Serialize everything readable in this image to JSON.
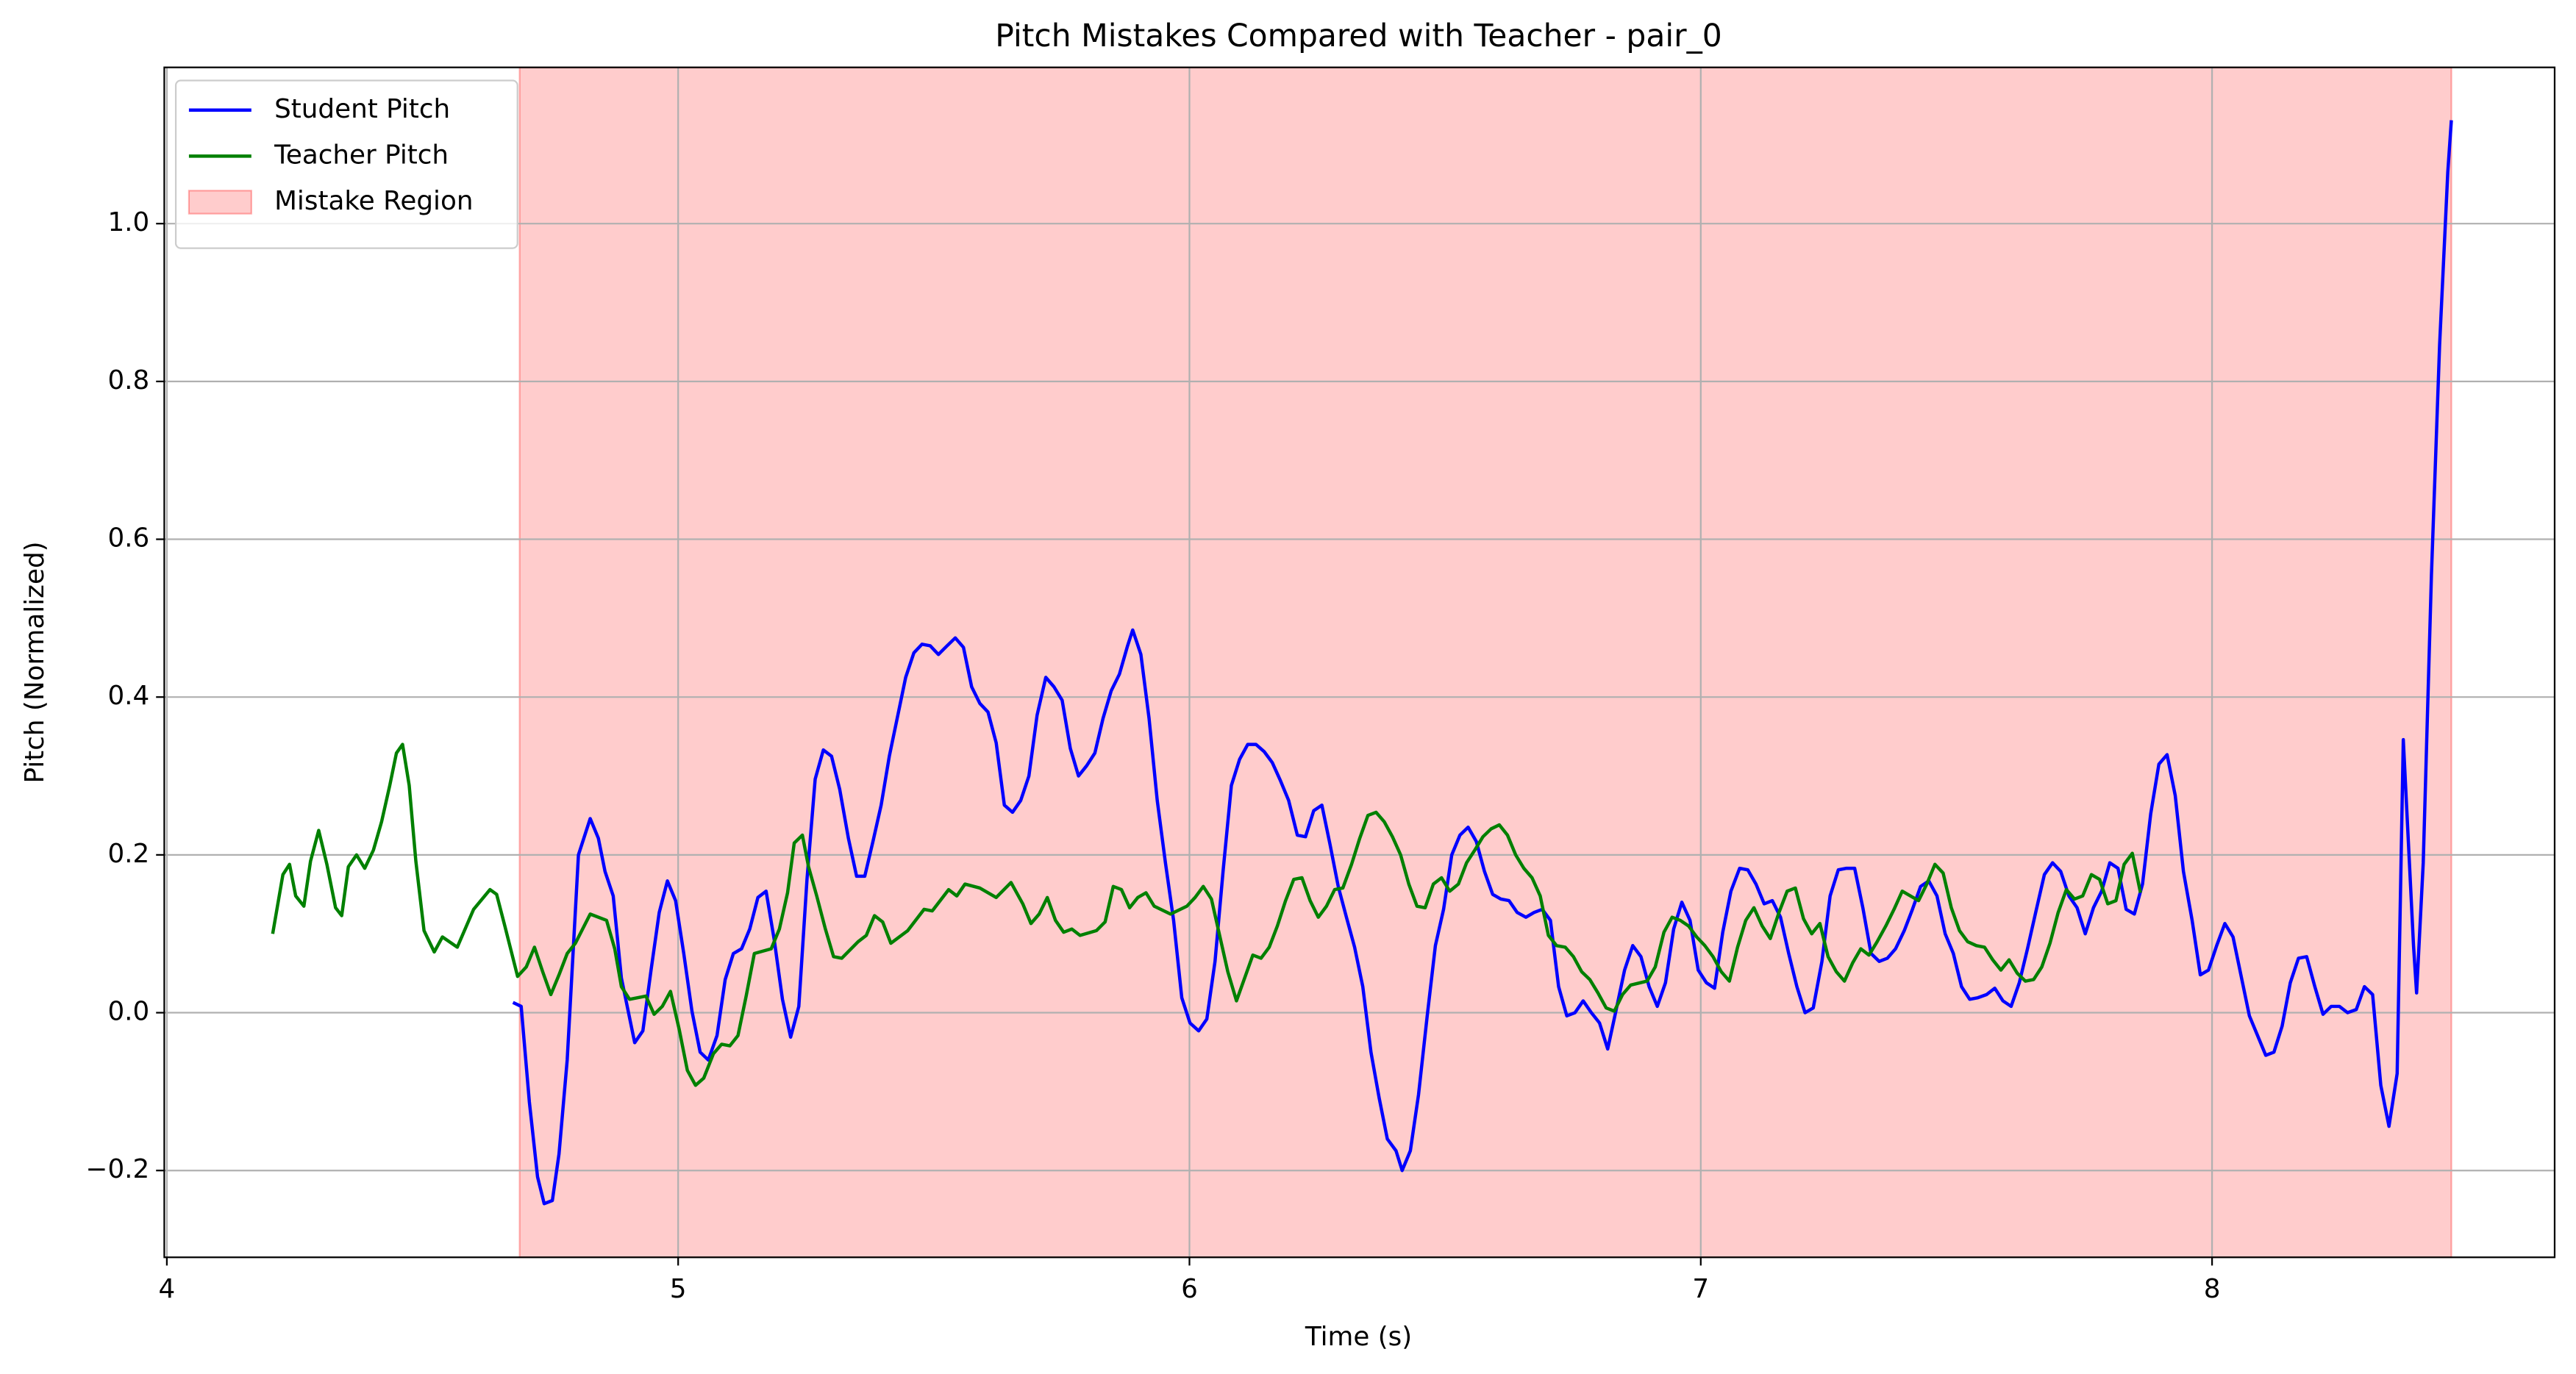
{
  "chart_data": {
    "type": "line",
    "title": "Pitch Mistakes Compared with Teacher - pair_0",
    "x_label": "Time (s)",
    "y_label": "Pitch (Normalized)",
    "xlim": [
      3.995,
      8.67
    ],
    "ylim": [
      -0.31,
      1.198
    ],
    "xticks": [
      4,
      5,
      6,
      7,
      8
    ],
    "yticks": [
      -0.2,
      0.0,
      0.2,
      0.4,
      0.6,
      0.8,
      1.0
    ],
    "grid": true,
    "legend": "upper left",
    "series": [
      {
        "name": "Student Pitch",
        "color": "#0000ff",
        "x": [
          4.677,
          4.693,
          4.709,
          4.725,
          4.738,
          4.754,
          4.767,
          4.783,
          4.805,
          4.828,
          4.844,
          4.857,
          4.873,
          4.889,
          4.915,
          4.931,
          4.947,
          4.963,
          4.979,
          4.995,
          5.011,
          5.027,
          5.043,
          5.059,
          5.076,
          5.092,
          5.108,
          5.124,
          5.14,
          5.156,
          5.172,
          5.188,
          5.204,
          5.22,
          5.236,
          5.252,
          5.268,
          5.284,
          5.3,
          5.316,
          5.333,
          5.349,
          5.365,
          5.381,
          5.397,
          5.413,
          5.429,
          5.445,
          5.461,
          5.477,
          5.493,
          5.509,
          5.526,
          5.542,
          5.558,
          5.574,
          5.59,
          5.606,
          5.622,
          5.638,
          5.654,
          5.67,
          5.686,
          5.702,
          5.719,
          5.735,
          5.751,
          5.767,
          5.783,
          5.799,
          5.815,
          5.831,
          5.847,
          5.863,
          5.879,
          5.889,
          5.905,
          5.921,
          5.937,
          5.953,
          5.969,
          5.985,
          6.001,
          6.018,
          6.034,
          6.05,
          6.066,
          6.082,
          6.098,
          6.114,
          6.13,
          6.146,
          6.162,
          6.178,
          6.194,
          6.211,
          6.227,
          6.243,
          6.259,
          6.275,
          6.291,
          6.307,
          6.323,
          6.339,
          6.355,
          6.371,
          6.387,
          6.404,
          6.416,
          6.432,
          6.448,
          6.465,
          6.481,
          6.497,
          6.513,
          6.529,
          6.545,
          6.561,
          6.577,
          6.593,
          6.609,
          6.625,
          6.641,
          6.658,
          6.674,
          6.69,
          6.706,
          6.722,
          6.738,
          6.754,
          6.77,
          6.786,
          6.802,
          6.818,
          6.834,
          6.851,
          6.867,
          6.883,
          6.899,
          6.915,
          6.931,
          6.947,
          6.963,
          6.979,
          6.995,
          7.011,
          7.027,
          7.043,
          7.059,
          7.076,
          7.092,
          7.108,
          7.124,
          7.14,
          7.156,
          7.172,
          7.188,
          7.204,
          7.22,
          7.237,
          7.253,
          7.269,
          7.285,
          7.301,
          7.317,
          7.333,
          7.349,
          7.365,
          7.381,
          7.398,
          7.414,
          7.43,
          7.446,
          7.462,
          7.478,
          7.494,
          7.51,
          7.526,
          7.542,
          7.559,
          7.575,
          7.591,
          7.607,
          7.623,
          7.639,
          7.655,
          7.672,
          7.688,
          7.704,
          7.72,
          7.736,
          7.752,
          7.768,
          7.784,
          7.8,
          7.816,
          7.832,
          7.848,
          7.864,
          7.88,
          7.896,
          7.912,
          7.928,
          7.944,
          7.961,
          7.977,
          7.993,
          8.009,
          8.025,
          8.041,
          8.057,
          8.073,
          8.089,
          8.105,
          8.121,
          8.137,
          8.153,
          8.169,
          8.185,
          8.201,
          8.217,
          8.233,
          8.249,
          8.265,
          8.282,
          8.298,
          8.314,
          8.33,
          8.346,
          8.362,
          8.374,
          8.394,
          8.4,
          8.413,
          8.429,
          8.445,
          8.461,
          8.468
        ],
        "values": [
          0.013,
          0.008,
          -0.113,
          -0.208,
          -0.242,
          -0.238,
          -0.179,
          -0.06,
          0.2,
          0.246,
          0.221,
          0.179,
          0.148,
          0.044,
          -0.038,
          -0.023,
          0.054,
          0.127,
          0.167,
          0.142,
          0.075,
          0.002,
          -0.05,
          -0.06,
          -0.029,
          0.042,
          0.075,
          0.081,
          0.106,
          0.146,
          0.154,
          0.092,
          0.017,
          -0.031,
          0.008,
          0.169,
          0.296,
          0.333,
          0.325,
          0.283,
          0.221,
          0.173,
          0.173,
          0.217,
          0.263,
          0.325,
          0.375,
          0.425,
          0.456,
          0.467,
          0.465,
          0.454,
          0.465,
          0.475,
          0.463,
          0.413,
          0.392,
          0.381,
          0.342,
          0.263,
          0.254,
          0.269,
          0.3,
          0.377,
          0.425,
          0.413,
          0.396,
          0.335,
          0.3,
          0.313,
          0.329,
          0.373,
          0.408,
          0.429,
          0.465,
          0.485,
          0.454,
          0.373,
          0.269,
          0.19,
          0.117,
          0.019,
          -0.013,
          -0.023,
          -0.008,
          0.065,
          0.181,
          0.288,
          0.321,
          0.34,
          0.34,
          0.331,
          0.317,
          0.294,
          0.269,
          0.225,
          0.223,
          0.256,
          0.263,
          0.213,
          0.16,
          0.121,
          0.083,
          0.033,
          -0.05,
          -0.108,
          -0.16,
          -0.175,
          -0.2,
          -0.175,
          -0.104,
          -0.004,
          0.085,
          0.131,
          0.2,
          0.225,
          0.235,
          0.217,
          0.179,
          0.15,
          0.144,
          0.142,
          0.127,
          0.121,
          0.127,
          0.131,
          0.117,
          0.033,
          -0.004,
          0.0,
          0.015,
          0.0,
          -0.013,
          -0.046,
          0.002,
          0.054,
          0.085,
          0.071,
          0.033,
          0.008,
          0.038,
          0.106,
          0.14,
          0.117,
          0.054,
          0.038,
          0.031,
          0.102,
          0.154,
          0.183,
          0.181,
          0.163,
          0.138,
          0.142,
          0.121,
          0.075,
          0.033,
          0.0,
          0.006,
          0.065,
          0.148,
          0.181,
          0.183,
          0.183,
          0.133,
          0.075,
          0.065,
          0.069,
          0.081,
          0.104,
          0.131,
          0.16,
          0.167,
          0.148,
          0.1,
          0.075,
          0.033,
          0.017,
          0.019,
          0.023,
          0.031,
          0.015,
          0.008,
          0.038,
          0.081,
          0.127,
          0.175,
          0.19,
          0.179,
          0.148,
          0.133,
          0.1,
          0.133,
          0.154,
          0.19,
          0.183,
          0.131,
          0.125,
          0.163,
          0.252,
          0.315,
          0.327,
          0.275,
          0.179,
          0.117,
          0.048,
          0.054,
          0.085,
          0.113,
          0.096,
          0.046,
          -0.004,
          -0.029,
          -0.054,
          -0.05,
          -0.017,
          0.038,
          0.069,
          0.071,
          0.033,
          -0.002,
          0.008,
          0.008,
          0.0,
          0.004,
          0.033,
          0.023,
          -0.092,
          -0.144,
          -0.077,
          0.346,
          0.085,
          0.025,
          0.19,
          0.554,
          0.846,
          1.065,
          1.131
        ]
      },
      {
        "name": "Teacher Pitch",
        "color": "#008000",
        "x": [
          4.207,
          4.227,
          4.24,
          4.252,
          4.268,
          4.281,
          4.297,
          4.313,
          4.33,
          4.342,
          4.355,
          4.371,
          4.387,
          4.404,
          4.42,
          4.436,
          4.449,
          4.461,
          4.474,
          4.487,
          4.503,
          4.523,
          4.539,
          4.568,
          4.6,
          4.632,
          4.645,
          4.661,
          4.686,
          4.703,
          4.719,
          4.735,
          4.751,
          4.767,
          4.783,
          4.799,
          4.828,
          4.86,
          4.876,
          4.889,
          4.905,
          4.937,
          4.953,
          4.969,
          4.985,
          5.002,
          5.018,
          5.034,
          5.05,
          5.069,
          5.085,
          5.101,
          5.117,
          5.133,
          5.149,
          5.182,
          5.198,
          5.214,
          5.227,
          5.243,
          5.255,
          5.271,
          5.288,
          5.304,
          5.32,
          5.352,
          5.368,
          5.384,
          5.4,
          5.416,
          5.449,
          5.481,
          5.497,
          5.529,
          5.545,
          5.561,
          5.59,
          5.622,
          5.651,
          5.674,
          5.69,
          5.706,
          5.722,
          5.738,
          5.754,
          5.77,
          5.786,
          5.818,
          5.835,
          5.851,
          5.867,
          5.883,
          5.899,
          5.915,
          5.931,
          5.963,
          5.995,
          6.011,
          6.027,
          6.043,
          6.059,
          6.075,
          6.092,
          6.108,
          6.124,
          6.14,
          6.156,
          6.172,
          6.188,
          6.204,
          6.22,
          6.236,
          6.252,
          6.268,
          6.284,
          6.3,
          6.317,
          6.333,
          6.349,
          6.365,
          6.381,
          6.397,
          6.413,
          6.429,
          6.445,
          6.461,
          6.477,
          6.493,
          6.509,
          6.526,
          6.542,
          6.558,
          6.574,
          6.59,
          6.606,
          6.622,
          6.638,
          6.654,
          6.67,
          6.686,
          6.702,
          6.718,
          6.735,
          6.751,
          6.767,
          6.783,
          6.799,
          6.815,
          6.831,
          6.847,
          6.863,
          6.895,
          6.911,
          6.928,
          6.944,
          6.96,
          6.976,
          6.992,
          7.008,
          7.024,
          7.04,
          7.056,
          7.072,
          7.088,
          7.104,
          7.12,
          7.136,
          7.153,
          7.169,
          7.185,
          7.201,
          7.217,
          7.233,
          7.249,
          7.265,
          7.281,
          7.297,
          7.313,
          7.329,
          7.345,
          7.362,
          7.378,
          7.394,
          7.41,
          7.426,
          7.442,
          7.458,
          7.474,
          7.49,
          7.506,
          7.522,
          7.539,
          7.555,
          7.571,
          7.587,
          7.603,
          7.619,
          7.635,
          7.651,
          7.667,
          7.683,
          7.699,
          7.715,
          7.731,
          7.747,
          7.764,
          7.78,
          7.796,
          7.812,
          7.828,
          7.844,
          7.86
        ],
        "values": [
          0.1,
          0.175,
          0.188,
          0.148,
          0.135,
          0.192,
          0.231,
          0.188,
          0.133,
          0.123,
          0.185,
          0.2,
          0.183,
          0.206,
          0.242,
          0.288,
          0.329,
          0.34,
          0.288,
          0.192,
          0.104,
          0.077,
          0.096,
          0.083,
          0.131,
          0.156,
          0.15,
          0.11,
          0.046,
          0.058,
          0.083,
          0.052,
          0.023,
          0.048,
          0.075,
          0.088,
          0.125,
          0.117,
          0.081,
          0.033,
          0.017,
          0.021,
          -0.002,
          0.008,
          0.027,
          -0.021,
          -0.073,
          -0.092,
          -0.083,
          -0.052,
          -0.04,
          -0.042,
          -0.029,
          0.021,
          0.075,
          0.081,
          0.106,
          0.152,
          0.215,
          0.225,
          0.185,
          0.148,
          0.106,
          0.071,
          0.069,
          0.09,
          0.098,
          0.123,
          0.115,
          0.088,
          0.104,
          0.131,
          0.129,
          0.156,
          0.148,
          0.163,
          0.158,
          0.146,
          0.165,
          0.138,
          0.113,
          0.125,
          0.146,
          0.117,
          0.102,
          0.106,
          0.098,
          0.104,
          0.115,
          0.16,
          0.156,
          0.133,
          0.146,
          0.152,
          0.135,
          0.125,
          0.135,
          0.146,
          0.16,
          0.144,
          0.098,
          0.052,
          0.015,
          0.044,
          0.073,
          0.069,
          0.083,
          0.11,
          0.142,
          0.169,
          0.171,
          0.142,
          0.121,
          0.135,
          0.156,
          0.158,
          0.188,
          0.221,
          0.25,
          0.254,
          0.242,
          0.223,
          0.2,
          0.163,
          0.135,
          0.133,
          0.163,
          0.171,
          0.154,
          0.163,
          0.19,
          0.206,
          0.223,
          0.233,
          0.238,
          0.225,
          0.2,
          0.183,
          0.171,
          0.148,
          0.098,
          0.085,
          0.083,
          0.071,
          0.052,
          0.042,
          0.025,
          0.006,
          0.002,
          0.023,
          0.035,
          0.04,
          0.058,
          0.102,
          0.121,
          0.117,
          0.11,
          0.096,
          0.085,
          0.071,
          0.052,
          0.04,
          0.083,
          0.117,
          0.133,
          0.11,
          0.094,
          0.127,
          0.154,
          0.158,
          0.119,
          0.1,
          0.113,
          0.071,
          0.052,
          0.04,
          0.063,
          0.081,
          0.073,
          0.09,
          0.11,
          0.131,
          0.154,
          0.148,
          0.142,
          0.163,
          0.188,
          0.177,
          0.133,
          0.104,
          0.09,
          0.085,
          0.083,
          0.067,
          0.054,
          0.067,
          0.05,
          0.04,
          0.042,
          0.058,
          0.088,
          0.127,
          0.156,
          0.144,
          0.148,
          0.175,
          0.169,
          0.138,
          0.142,
          0.188,
          0.202,
          0.152
        ]
      }
    ],
    "spans": [
      {
        "name": "Mistake Region",
        "color": "#ff0000",
        "alpha": 0.2,
        "x": [
          4.69,
          8.468
        ]
      }
    ]
  }
}
